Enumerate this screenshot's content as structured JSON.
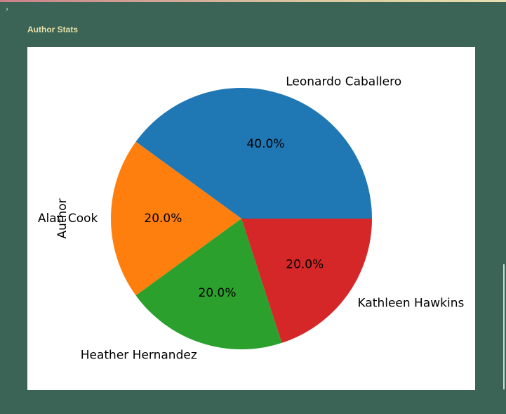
{
  "header": {
    "toggle_glyph": "›",
    "section_title": "Author Stats"
  },
  "colors": {
    "background": "#3b6456",
    "panel": "#ffffff",
    "title": "#e6e0a8"
  },
  "chart_data": {
    "type": "pie",
    "ylabel": "Author",
    "start_angle_deg": 0,
    "direction": "counterclockwise",
    "slices": [
      {
        "label": "Leonardo Caballero",
        "value": 40,
        "pct_label": "40.0%",
        "color": "#1f77b4"
      },
      {
        "label": "Alan Cook",
        "value": 20,
        "pct_label": "20.0%",
        "color": "#ff7f0e"
      },
      {
        "label": "Heather Hernandez",
        "value": 20,
        "pct_label": "20.0%",
        "color": "#2ca02c"
      },
      {
        "label": "Kathleen Hawkins",
        "value": 20,
        "pct_label": "20.0%",
        "color": "#d62728"
      }
    ]
  }
}
